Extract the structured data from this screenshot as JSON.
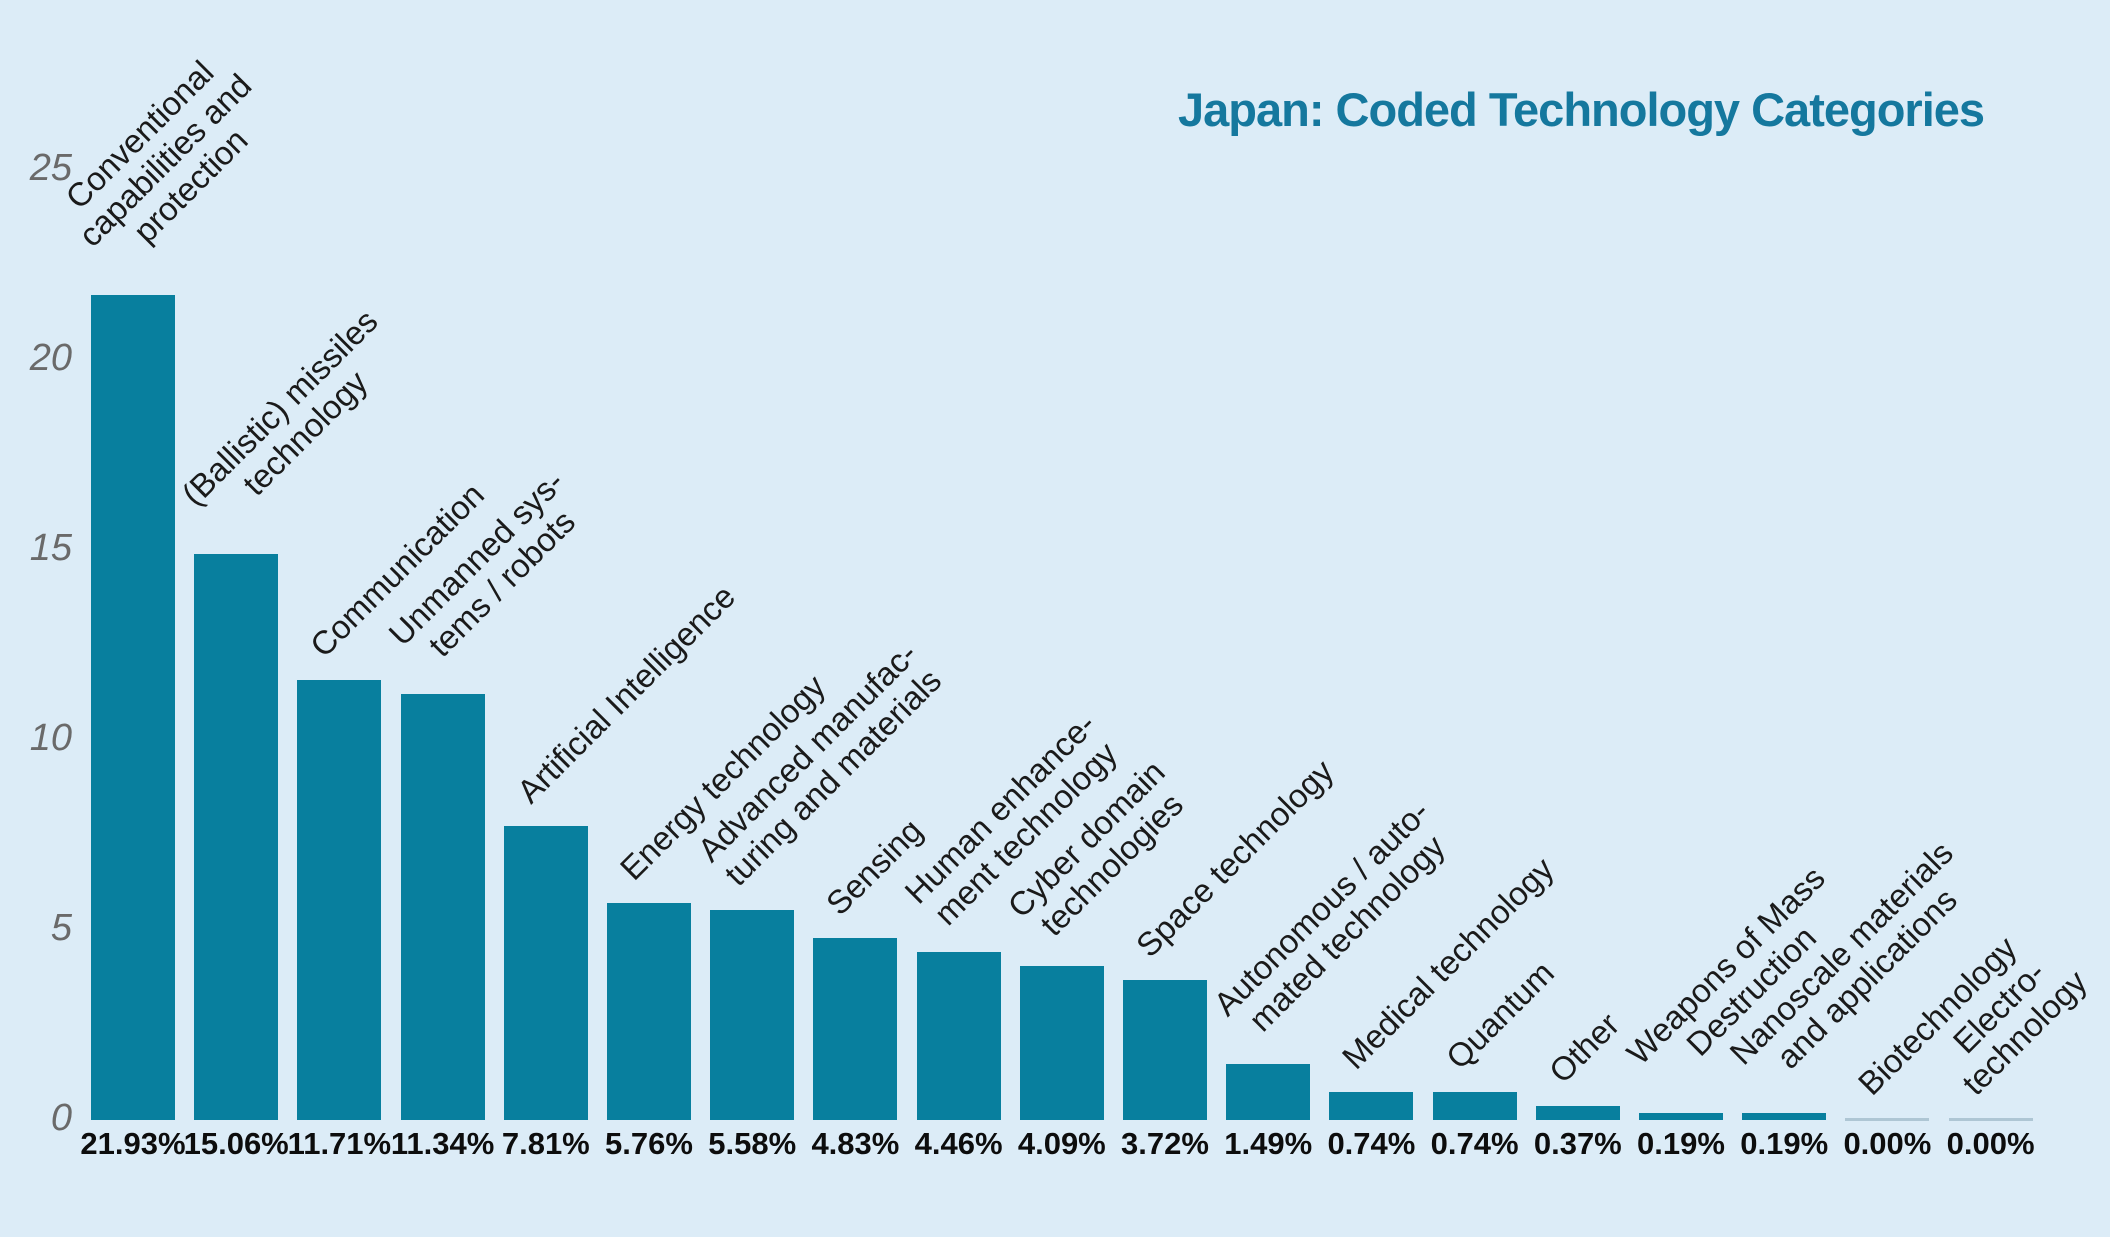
{
  "page": {
    "background": "#DCECF7"
  },
  "chart_data": {
    "type": "bar",
    "title": "Japan: Coded Technology Categories",
    "title_color": "#15789E",
    "bar_color": "#087F9E",
    "zero_bar_color": "#AEC6D4",
    "category_label_color": "#1A1A1A",
    "value_label_color": "#0D0D0D",
    "tick_label_color": "#6A6A6A",
    "background": "#DCECF7",
    "xlabel": "",
    "ylabel": "",
    "ylim": [
      0,
      25
    ],
    "yticks": [
      0,
      5,
      10,
      15,
      20,
      25
    ],
    "grid": false,
    "legend": false,
    "bar_label_rotation_deg": 45,
    "categories": [
      "Conventional\ncapabilities and\nprotection",
      "(Ballistic) missiles\ntechnology",
      "Communication",
      "Unmanned sys-\ntems / robots",
      "Artificial Intelligence",
      "Energy technology",
      "Advanced manufac-\nturing and materials",
      "Sensing",
      "Human enhance-\nment technology",
      "Cyber domain\ntechnologies",
      "Space technology",
      "Autonomous / auto-\nmated technology",
      "Medical technology",
      "Quantum",
      "Other",
      "Weapons of Mass\nDestruction",
      "Nanoscale materials\nand applications",
      "Biotechnology",
      "Electro-\ntechnology"
    ],
    "values": [
      21.93,
      15.06,
      11.71,
      11.34,
      7.81,
      5.76,
      5.58,
      4.83,
      4.46,
      4.09,
      3.72,
      1.49,
      0.74,
      0.74,
      0.37,
      0.19,
      0.19,
      0.0,
      0.0
    ],
    "value_labels": [
      "21.93%",
      "15.06%",
      "11.71%",
      "11.34%",
      "7.81%",
      "5.76%",
      "5.58%",
      "4.83%",
      "4.46%",
      "4.09%",
      "3.72%",
      "1.49%",
      "0.74%",
      "0.74%",
      "0.37%",
      "0.19%",
      "0.19%",
      "0.00%",
      "0.00%"
    ]
  }
}
